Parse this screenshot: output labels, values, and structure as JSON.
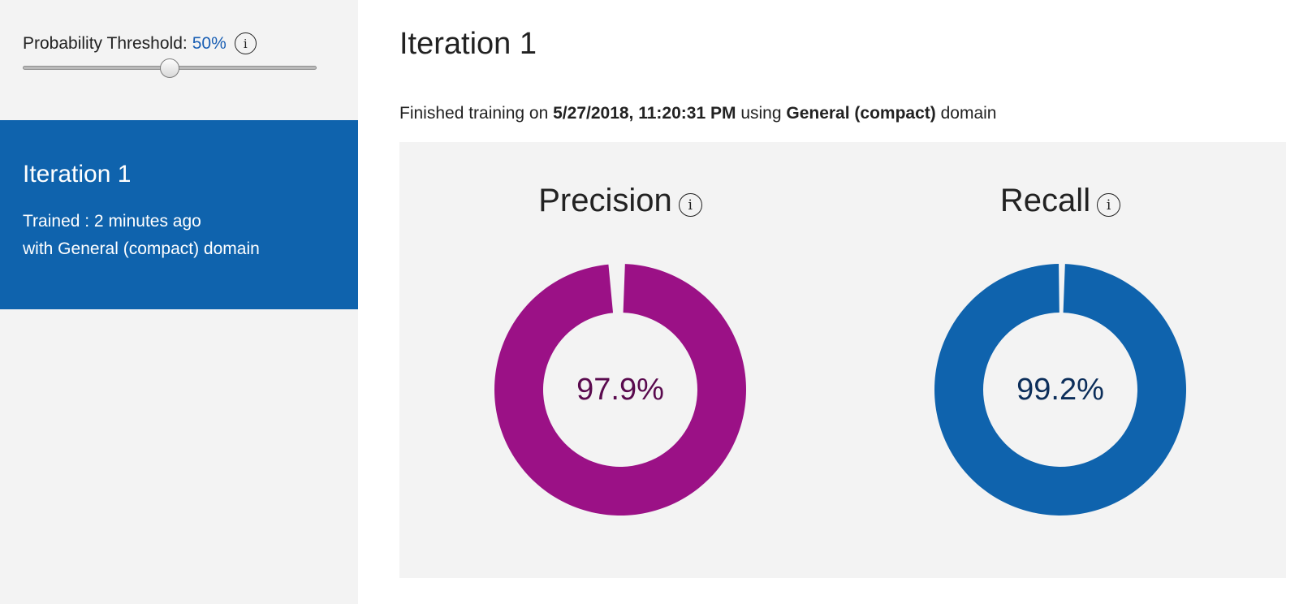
{
  "sidebar": {
    "threshold_label": "Probability Threshold:",
    "threshold_value": "50%",
    "threshold_fraction": 0.5,
    "iteration": {
      "title": "Iteration 1",
      "trained": "Trained : 2 minutes ago",
      "domain": "with General (compact) domain"
    }
  },
  "main": {
    "title": "Iteration 1",
    "summary": {
      "prefix": "Finished training on",
      "date": "5/27/2018, 11:20:31 PM",
      "middle": "using",
      "domain": "General (compact)",
      "suffix": "domain"
    },
    "metrics": [
      {
        "label": "Precision",
        "value_text": "97.9%",
        "value": 97.9,
        "color": "#9b1186",
        "text_color": "#5a0a4e",
        "icon": "info-icon"
      },
      {
        "label": "Recall",
        "value_text": "99.2%",
        "value": 99.2,
        "color": "#0f63ad",
        "text_color": "#0c2e5a",
        "icon": "info-icon"
      }
    ]
  },
  "icons": {
    "info": "i"
  }
}
